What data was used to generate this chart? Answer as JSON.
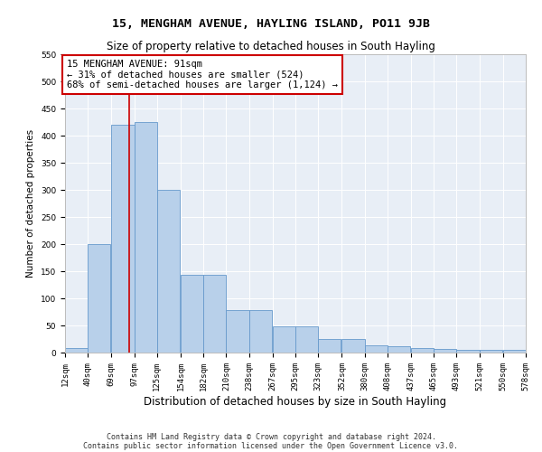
{
  "title": "15, MENGHAM AVENUE, HAYLING ISLAND, PO11 9JB",
  "subtitle": "Size of property relative to detached houses in South Hayling",
  "xlabel": "Distribution of detached houses by size in South Hayling",
  "ylabel": "Number of detached properties",
  "bar_left_edges": [
    12,
    40,
    69,
    97,
    125,
    154,
    182,
    210,
    238,
    267,
    295,
    323,
    352,
    380,
    408,
    437,
    465,
    493,
    521,
    550
  ],
  "bar_heights": [
    8,
    200,
    420,
    425,
    300,
    143,
    143,
    78,
    78,
    48,
    48,
    25,
    25,
    13,
    12,
    8,
    6,
    5,
    5,
    5
  ],
  "bin_width": 28,
  "bar_color": "#b8d0ea",
  "bar_edge_color": "#6699cc",
  "bg_color": "#e8eef6",
  "property_line_x": 91,
  "annotation_text": "15 MENGHAM AVENUE: 91sqm\n← 31% of detached houses are smaller (524)\n68% of semi-detached houses are larger (1,124) →",
  "annotation_box_color": "#ffffff",
  "annotation_box_edge_color": "#cc0000",
  "annotation_line_color": "#cc0000",
  "ylim": [
    0,
    550
  ],
  "yticks": [
    0,
    50,
    100,
    150,
    200,
    250,
    300,
    350,
    400,
    450,
    500,
    550
  ],
  "tick_labels": [
    "12sqm",
    "40sqm",
    "69sqm",
    "97sqm",
    "125sqm",
    "154sqm",
    "182sqm",
    "210sqm",
    "238sqm",
    "267sqm",
    "295sqm",
    "323sqm",
    "352sqm",
    "380sqm",
    "408sqm",
    "437sqm",
    "465sqm",
    "493sqm",
    "521sqm",
    "550sqm",
    "578sqm"
  ],
  "footer_line1": "Contains HM Land Registry data © Crown copyright and database right 2024.",
  "footer_line2": "Contains public sector information licensed under the Open Government Licence v3.0.",
  "title_fontsize": 9.5,
  "subtitle_fontsize": 8.5,
  "xlabel_fontsize": 8.5,
  "ylabel_fontsize": 7.5,
  "tick_fontsize": 6.5,
  "annotation_fontsize": 7.5,
  "footer_fontsize": 6.0
}
